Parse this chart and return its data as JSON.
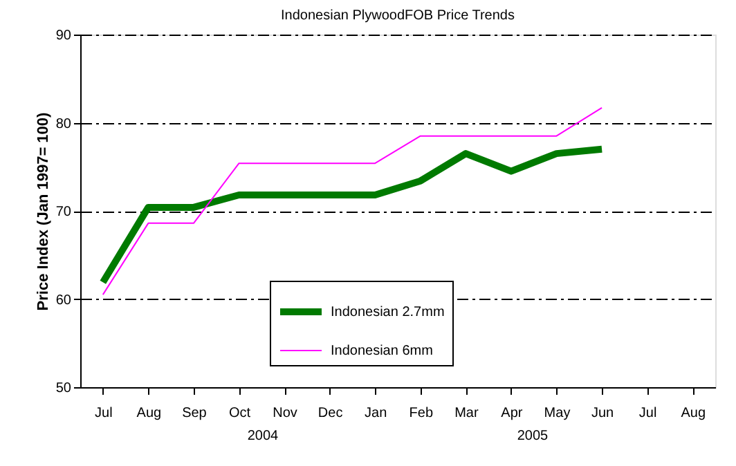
{
  "chart_data": {
    "type": "line",
    "title": "Indonesian PlywoodFOB Price Trends",
    "ylabel": "Price Index (Jan 1997= 100)",
    "categories": [
      "Jul",
      "Aug",
      "Sep",
      "Oct",
      "Nov",
      "Dec",
      "Jan",
      "Feb",
      "Mar",
      "Apr",
      "May",
      "Jun",
      "Jul",
      "Aug"
    ],
    "series": [
      {
        "name": "Indonesian 2.7mm",
        "color": "#007a00",
        "values": [
          61.9,
          70.4,
          70.4,
          71.8,
          71.8,
          71.8,
          71.8,
          73.4,
          76.5,
          74.5,
          76.5,
          77,
          null,
          null
        ]
      },
      {
        "name": "Indonesian 6mm",
        "color": "#ff00ff",
        "values": [
          60.5,
          68.6,
          68.6,
          75.4,
          75.4,
          75.4,
          75.4,
          78.5,
          78.5,
          78.5,
          78.5,
          81.7,
          null,
          null
        ]
      }
    ],
    "ylim": [
      50,
      90
    ],
    "yticks": [
      50,
      60,
      70,
      80,
      90
    ],
    "grid": "y",
    "legend": "bottom",
    "line_style": "solid",
    "annotations": [
      "2004",
      "2005"
    ]
  }
}
